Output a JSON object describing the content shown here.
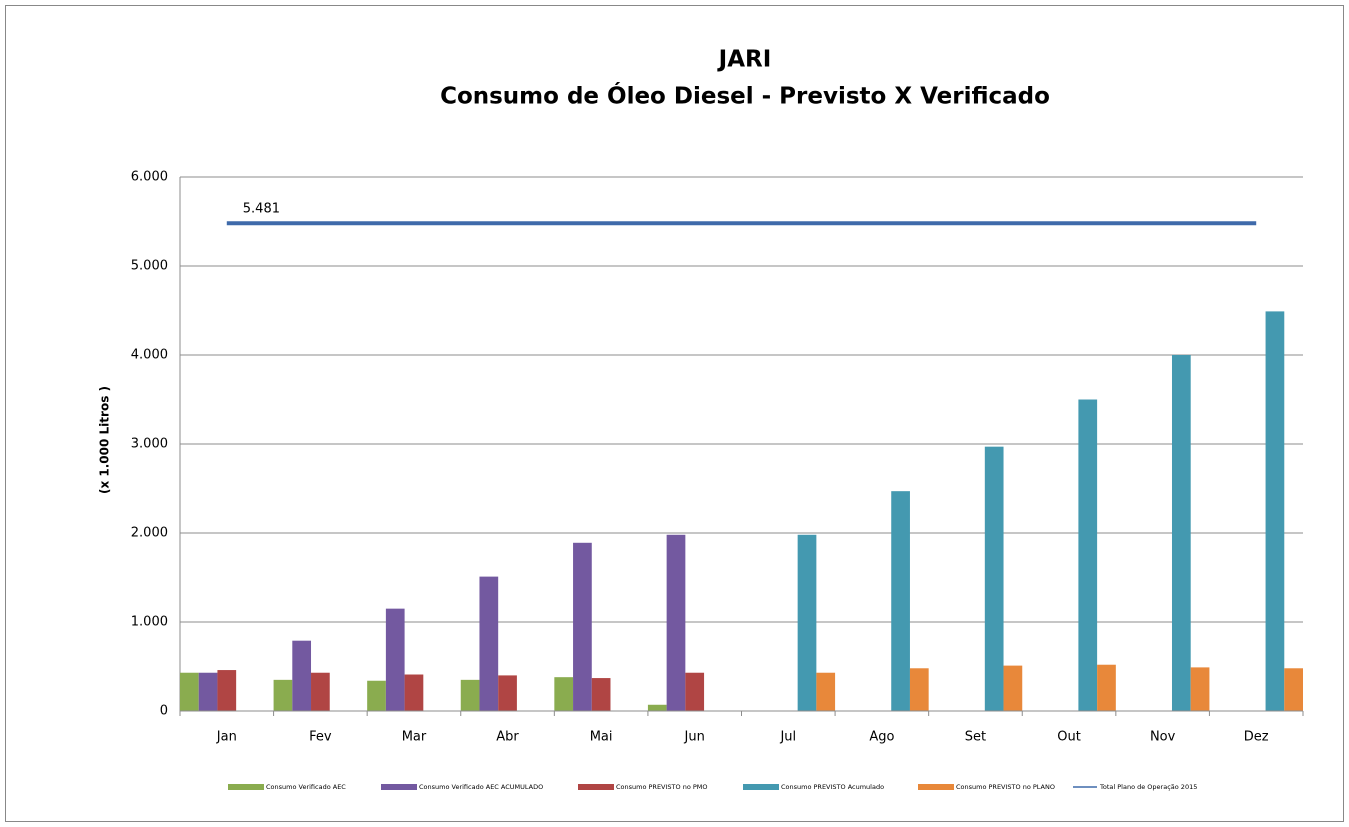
{
  "chart_data": {
    "type": "bar",
    "title": "JARI",
    "subtitle": "Consumo de Óleo Diesel - Previsto X Verificado",
    "y_label": "(x 1.000 Litros )",
    "categories": [
      "Jan",
      "Fev",
      "Mar",
      "Abr",
      "Mai",
      "Jun",
      "Jul",
      "Ago",
      "Set",
      "Out",
      "Nov",
      "Dez"
    ],
    "ylim": [
      0,
      6000
    ],
    "yticks": [
      0,
      {
        "value": 1000,
        "label": "1.000"
      },
      {
        "value": 2000,
        "label": "2.000"
      },
      {
        "value": 3000,
        "label": "3.000"
      },
      {
        "value": 4000,
        "label": "4.000"
      },
      {
        "value": 5000,
        "label": "5.000"
      },
      {
        "value": 6000,
        "label": "6.000"
      }
    ],
    "grid": true,
    "legend": "bottom",
    "series": [
      {
        "name": "Consumo Verificado AEC",
        "color": "#8aac4f",
        "values": [
          430,
          350,
          340,
          350,
          380,
          70,
          null,
          null,
          null,
          null,
          null,
          null
        ]
      },
      {
        "name": "Consumo Verificado AEC ACUMULADO",
        "color": "#7359a0",
        "values": [
          430,
          790,
          1150,
          1510,
          1890,
          1980,
          null,
          null,
          null,
          null,
          null,
          null
        ]
      },
      {
        "name": "Consumo PREVISTO no PMO",
        "color": "#b04544",
        "values": [
          460,
          430,
          410,
          400,
          370,
          430,
          null,
          null,
          null,
          null,
          null,
          null
        ]
      },
      {
        "name": "Consumo PREVISTO Acumulado",
        "color": "#4499b0",
        "values": [
          null,
          null,
          null,
          null,
          null,
          null,
          1980,
          2470,
          2970,
          3500,
          4000,
          4490
        ]
      },
      {
        "name": "Consumo PREVISTO no PLANO",
        "color": "#e8883a",
        "values": [
          null,
          null,
          null,
          null,
          null,
          null,
          430,
          480,
          510,
          520,
          490,
          480
        ]
      },
      {
        "name": "Total Plano de Operação 2015",
        "color": "#3f6aaa",
        "type": "line",
        "values": [
          5481,
          5481,
          5481,
          5481,
          5481,
          5481,
          5481,
          5481,
          5481,
          5481,
          5481,
          5481
        ],
        "value_labels": [
          "5.481",
          null,
          null,
          null,
          null,
          null,
          null,
          null,
          null,
          null,
          null,
          null
        ]
      }
    ]
  }
}
